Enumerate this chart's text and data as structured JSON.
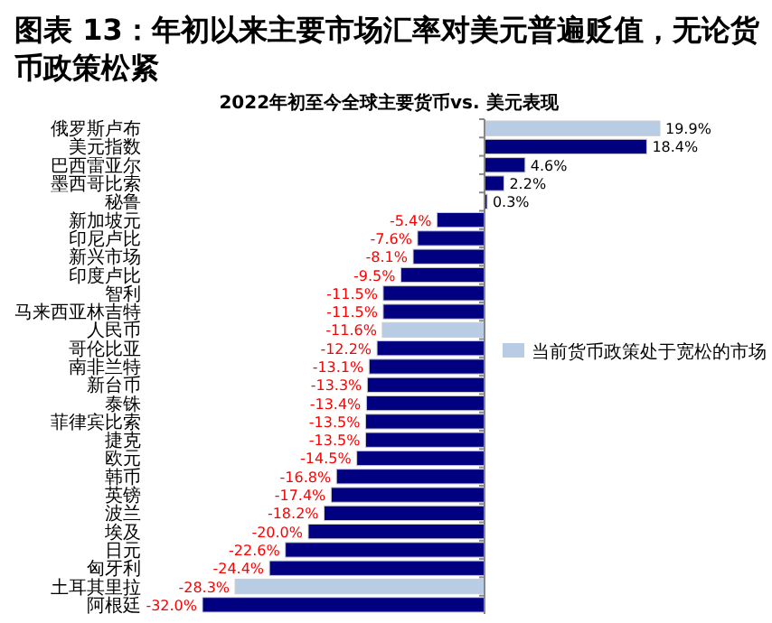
{
  "chart_data": {
    "type": "bar",
    "orientation": "horizontal",
    "legend": "right",
    "title": "图表 13：年初以来主要市场汇率对美元普遍贬值，无论货币政策松紧",
    "subtitle": "2022年初至今全球主要货币vs. 美元表现",
    "categories": [
      "俄罗斯卢布",
      "美元指数",
      "巴西雷亚尔",
      "墨西哥比索",
      "秘鲁",
      "新加坡元",
      "印尼卢比",
      "新兴市场",
      "印度卢比",
      "智利",
      "马来西亚林吉特",
      "人民币",
      "哥伦比亚",
      "南非兰特",
      "新台币",
      "泰铢",
      "菲律宾比索",
      "捷克",
      "欧元",
      "韩币",
      "英镑",
      "波兰",
      "埃及",
      "日元",
      "匈牙利",
      "土耳其里拉",
      "阿根廷"
    ],
    "series": [
      {
        "color": "#000080",
        "values": [
          null,
          18.4,
          4.6,
          2.2,
          0.3,
          -5.4,
          -7.6,
          -8.1,
          -9.5,
          -11.5,
          -11.5,
          null,
          -12.2,
          -13.1,
          -13.3,
          -13.4,
          -13.5,
          -13.5,
          -14.5,
          -16.8,
          -17.4,
          -18.2,
          -20.0,
          -22.6,
          -24.4,
          null,
          -32.0
        ],
        "value_labels": [
          null,
          "18.4%",
          "4.6%",
          "2.2%",
          "0.3%",
          "-5.4%",
          "-7.6%",
          "-8.1%",
          "-9.5%",
          "-11.5%",
          "-11.5%",
          null,
          "-12.2%",
          "-13.1%",
          "-13.3%",
          "-13.4%",
          "-13.5%",
          "-13.5%",
          "-14.5%",
          "-16.8%",
          "-17.4%",
          "-18.2%",
          "-20.0%",
          "-22.6%",
          "-24.4%",
          null,
          "-32.0%"
        ]
      },
      {
        "name": "当前货币政策处于宽松的市场",
        "color": "#b8cce4",
        "values": [
          19.9,
          null,
          null,
          null,
          null,
          null,
          null,
          null,
          null,
          null,
          null,
          -11.6,
          null,
          null,
          null,
          null,
          null,
          null,
          null,
          null,
          null,
          null,
          null,
          null,
          null,
          -28.3,
          null
        ],
        "value_labels": [
          "19.9%",
          null,
          null,
          null,
          null,
          null,
          null,
          null,
          null,
          null,
          null,
          "-11.6%",
          null,
          null,
          null,
          null,
          null,
          null,
          null,
          null,
          null,
          null,
          null,
          null,
          null,
          "-28.3%",
          null
        ]
      }
    ]
  }
}
